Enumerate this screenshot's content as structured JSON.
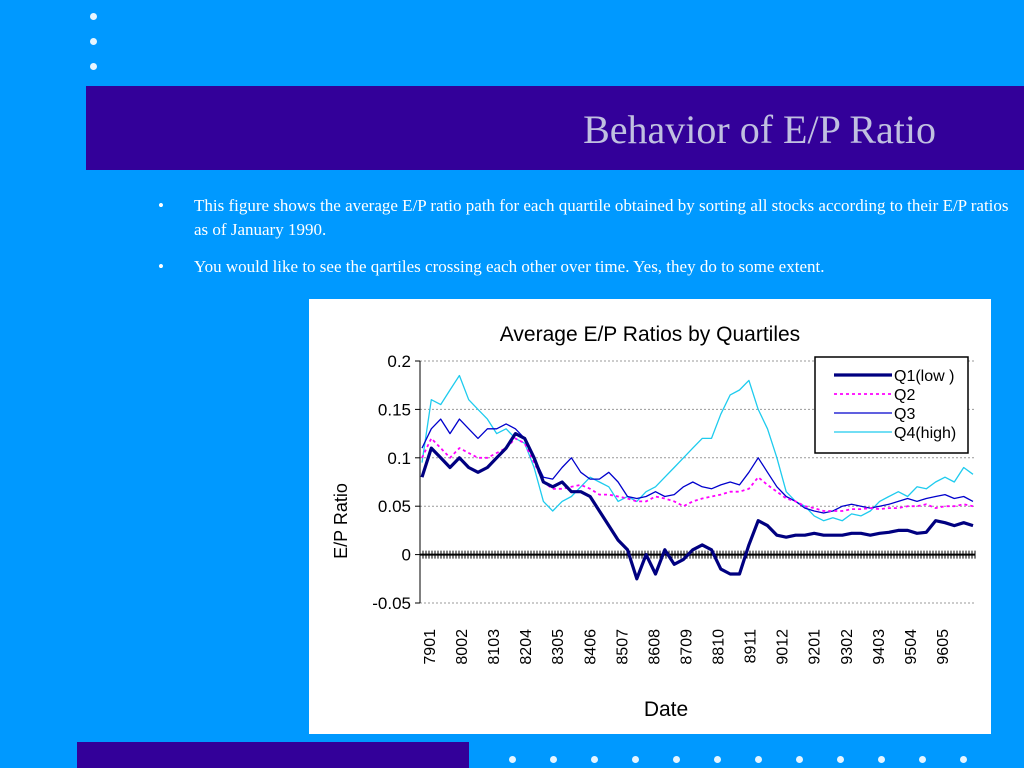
{
  "slide": {
    "title": "Behavior of E/P Ratio",
    "bullets": [
      {
        "mark": "•",
        "text": "This figure shows the average E/P ratio path for each quartile obtained by sorting all stocks according to their E/P ratios as of January 1990."
      },
      {
        "mark": "•",
        "text": "You would like to see the qartiles crossing each other over time. Yes, they do to some extent."
      }
    ]
  },
  "colors": {
    "background": "#0099ff",
    "title_band": "#330099",
    "title_text": "#c0c0e0",
    "q1": "#000080",
    "q2": "#ff00ff",
    "q3": "#0000cc",
    "q4": "#1ecbee"
  },
  "chart_data": {
    "type": "line",
    "title": "Average E/P Ratios by Quartiles",
    "xlabel": "Date",
    "ylabel": "E/P Ratio",
    "ylim": [
      -0.05,
      0.2
    ],
    "y_ticks": [
      "-0.05",
      "0",
      "0.05",
      "0.1",
      "0.15",
      "0.2"
    ],
    "y_tick_values": [
      -0.05,
      0,
      0.05,
      0.1,
      0.15,
      0.2
    ],
    "x_ticks": [
      "7901",
      "8002",
      "8103",
      "8204",
      "8305",
      "8406",
      "8507",
      "8608",
      "8709",
      "8810",
      "8911",
      "9012",
      "9201",
      "9302",
      "9403",
      "9504",
      "9605"
    ],
    "grid": true,
    "legend_position": "top-right",
    "series": [
      {
        "name": "Q1(low )",
        "style": "thick",
        "values": [
          0.08,
          0.11,
          0.1,
          0.09,
          0.1,
          0.09,
          0.085,
          0.09,
          0.1,
          0.11,
          0.125,
          0.12,
          0.1,
          0.075,
          0.07,
          0.075,
          0.065,
          0.065,
          0.06,
          0.045,
          0.03,
          0.015,
          0.005,
          -0.025,
          0.0,
          -0.02,
          0.005,
          -0.01,
          -0.005,
          0.005,
          0.01,
          0.005,
          -0.015,
          -0.02,
          -0.02,
          0.01,
          0.035,
          0.03,
          0.02,
          0.018,
          0.02,
          0.02,
          0.022,
          0.02,
          0.02,
          0.02,
          0.022,
          0.022,
          0.02,
          0.022,
          0.023,
          0.025,
          0.025,
          0.022,
          0.023,
          0.035,
          0.033,
          0.03,
          0.033,
          0.03
        ]
      },
      {
        "name": "Q2",
        "style": "dotted",
        "values": [
          0.1,
          0.12,
          0.11,
          0.1,
          0.11,
          0.105,
          0.1,
          0.1,
          0.105,
          0.11,
          0.12,
          0.115,
          0.095,
          0.075,
          0.068,
          0.068,
          0.07,
          0.072,
          0.068,
          0.062,
          0.062,
          0.06,
          0.058,
          0.055,
          0.055,
          0.06,
          0.058,
          0.055,
          0.05,
          0.055,
          0.058,
          0.06,
          0.062,
          0.065,
          0.065,
          0.068,
          0.08,
          0.072,
          0.065,
          0.058,
          0.055,
          0.05,
          0.048,
          0.045,
          0.045,
          0.045,
          0.047,
          0.047,
          0.048,
          0.047,
          0.048,
          0.048,
          0.05,
          0.05,
          0.052,
          0.048,
          0.05,
          0.05,
          0.052,
          0.05
        ]
      },
      {
        "name": "Q3",
        "style": "solid",
        "values": [
          0.11,
          0.13,
          0.14,
          0.125,
          0.14,
          0.13,
          0.12,
          0.13,
          0.13,
          0.135,
          0.13,
          0.12,
          0.1,
          0.08,
          0.078,
          0.09,
          0.1,
          0.085,
          0.078,
          0.078,
          0.085,
          0.075,
          0.06,
          0.058,
          0.06,
          0.065,
          0.06,
          0.062,
          0.07,
          0.075,
          0.07,
          0.068,
          0.072,
          0.075,
          0.072,
          0.085,
          0.1,
          0.085,
          0.07,
          0.06,
          0.055,
          0.048,
          0.045,
          0.043,
          0.045,
          0.05,
          0.052,
          0.05,
          0.048,
          0.05,
          0.052,
          0.055,
          0.058,
          0.055,
          0.058,
          0.06,
          0.062,
          0.058,
          0.06,
          0.055
        ]
      },
      {
        "name": "Q4(high)",
        "style": "solid",
        "values": [
          0.095,
          0.16,
          0.155,
          0.17,
          0.185,
          0.16,
          0.15,
          0.14,
          0.125,
          0.13,
          0.12,
          0.115,
          0.09,
          0.055,
          0.045,
          0.055,
          0.06,
          0.07,
          0.08,
          0.075,
          0.07,
          0.055,
          0.06,
          0.055,
          0.065,
          0.07,
          0.08,
          0.09,
          0.1,
          0.11,
          0.12,
          0.12,
          0.145,
          0.165,
          0.17,
          0.18,
          0.15,
          0.13,
          0.1,
          0.065,
          0.055,
          0.05,
          0.04,
          0.035,
          0.038,
          0.035,
          0.042,
          0.04,
          0.045,
          0.055,
          0.06,
          0.065,
          0.06,
          0.07,
          0.068,
          0.075,
          0.08,
          0.075,
          0.09,
          0.083
        ]
      }
    ]
  }
}
